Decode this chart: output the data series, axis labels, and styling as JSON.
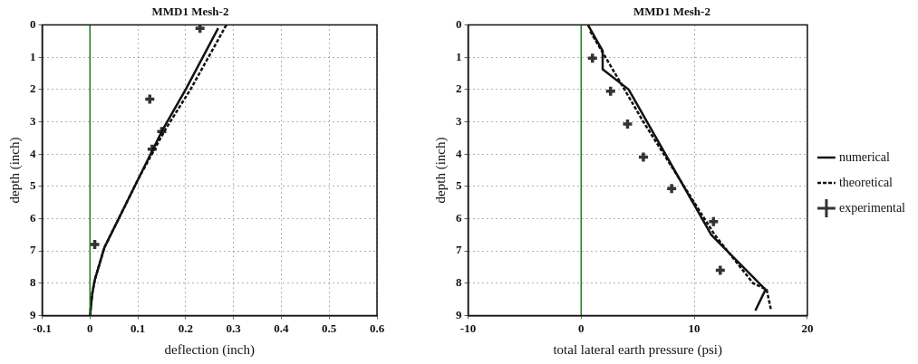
{
  "chart_data": [
    {
      "type": "line",
      "title": "MMD1 Mesh-2",
      "xlabel": "deflection (inch)",
      "ylabel": "depth (inch)",
      "xlim": [
        -0.1,
        0.6
      ],
      "xticks": [
        -0.1,
        0,
        0.1,
        0.2,
        0.3,
        0.4,
        0.5,
        0.6
      ],
      "ylim": [
        9,
        0
      ],
      "yticks": [
        0,
        1,
        2,
        3,
        4,
        5,
        6,
        7,
        8,
        9
      ],
      "grid": true,
      "ref_lines": [
        {
          "axis": "x",
          "value": 0,
          "color": "#1f7a1f"
        }
      ],
      "series": [
        {
          "color": "#111111",
          "line_style": "solid",
          "marker": "none",
          "x": [
            0.268,
            0.2,
            0.15,
            0.1,
            0.06,
            0.03,
            0.01,
            0.005,
            0
          ],
          "values": [
            0.1,
            2,
            3.3,
            4.8,
            6,
            6.9,
            7.9,
            8.3,
            9
          ]
        },
        {
          "color": "#111111",
          "line_style": "dashed",
          "marker": "none",
          "x": [
            0.285,
            0.21,
            0.155,
            0.1,
            0.06,
            0.03,
            0.01,
            0.005,
            0
          ],
          "values": [
            0,
            2,
            3.3,
            4.8,
            6,
            6.9,
            7.9,
            8.3,
            9
          ]
        },
        {
          "type": "scatter",
          "color": "#333333",
          "marker": "cross",
          "x": [
            0.23,
            0.125,
            0.15,
            0.13,
            0.01
          ],
          "values": [
            0.1,
            2.3,
            3.3,
            3.85,
            6.8
          ]
        }
      ]
    },
    {
      "type": "line",
      "title": "MMD1 Mesh-2",
      "xlabel": "total lateral earth pressure (psi)",
      "ylabel": "depth (inch)",
      "xlim": [
        -10,
        20
      ],
      "xticks": [
        -10,
        0,
        10,
        20
      ],
      "ylim": [
        9,
        0
      ],
      "yticks": [
        0,
        1,
        2,
        3,
        4,
        5,
        6,
        7,
        8,
        9
      ],
      "grid": true,
      "legend": "right",
      "ref_lines": [
        {
          "axis": "x",
          "value": 0,
          "color": "#1f7a1f"
        }
      ],
      "series": [
        {
          "name": "numerical",
          "color": "#111111",
          "line_style": "solid",
          "marker": "none",
          "x": [
            0.6,
            1.9,
            1.9,
            4.2,
            11.5,
            16.3,
            15.4
          ],
          "values": [
            0,
            0.8,
            1.37,
            2,
            6.5,
            8.2,
            8.85
          ]
        },
        {
          "name": "theoretical",
          "color": "#111111",
          "line_style": "dashed",
          "marker": "none",
          "x": [
            0.8,
            3.5,
            5.5,
            11.8,
            15.2,
            16.4,
            16.8
          ],
          "values": [
            0.2,
            1.8,
            3,
            6.5,
            8,
            8.2,
            8.85
          ]
        },
        {
          "name": "experimental",
          "type": "scatter",
          "color": "#333333",
          "marker": "cross",
          "x": [
            1,
            2.6,
            4.1,
            5.5,
            8,
            11.7,
            12.3
          ],
          "values": [
            1.03,
            2.05,
            3.07,
            4.09,
            5.07,
            6.09,
            7.6
          ]
        }
      ]
    }
  ]
}
